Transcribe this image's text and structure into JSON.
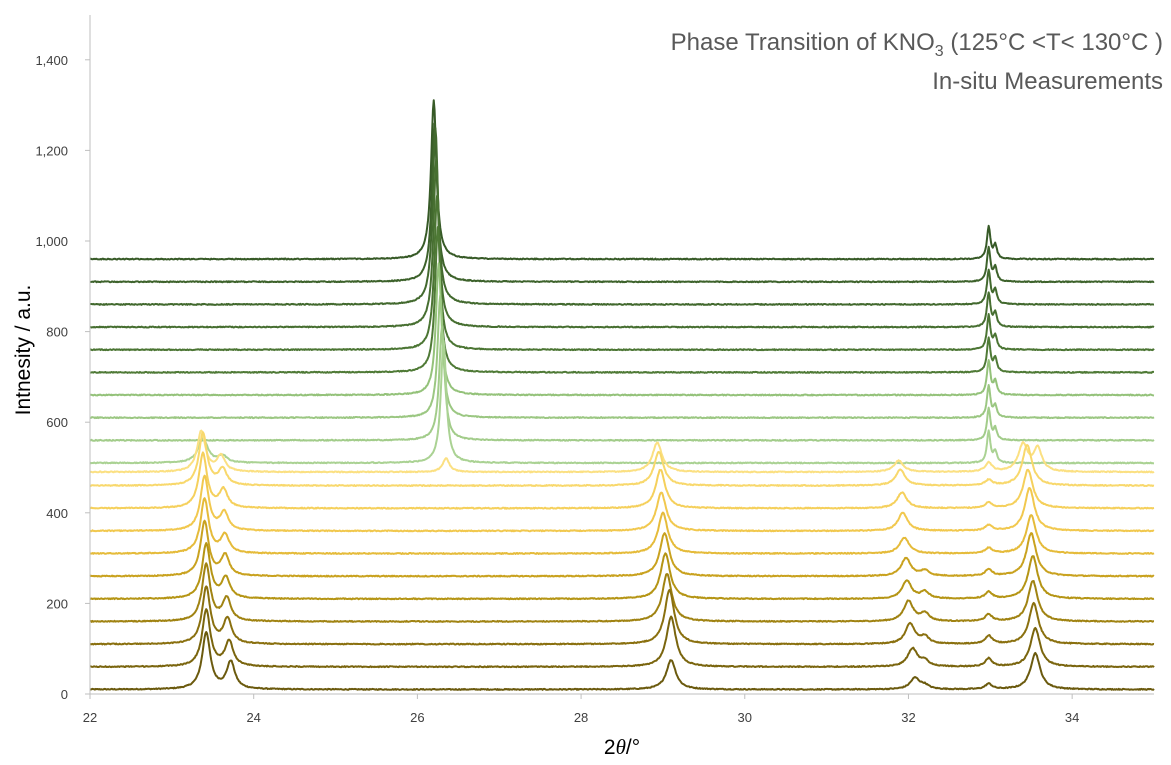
{
  "chart_data": {
    "type": "line",
    "title_line1_main": "Phase Transition of KNO",
    "title_line1_sub": "3",
    "title_line1_tail": " (125°C <T< 130°C )",
    "title_line2": "In-situ Measurements",
    "xlabel_pre": "2",
    "xlabel_theta": "θ",
    "xlabel_post": "/°",
    "ylabel": "Intnesity / a.u.",
    "xlim": [
      22,
      35
    ],
    "ylim": [
      0,
      1450
    ],
    "x_ticks": [
      22,
      24,
      26,
      28,
      30,
      32,
      34
    ],
    "y_ticks": [
      {
        "value": 0,
        "label": "0"
      },
      {
        "value": 200,
        "label": "200"
      },
      {
        "value": 400,
        "label": "400"
      },
      {
        "value": 600,
        "label": "600"
      },
      {
        "value": 800,
        "label": "800"
      },
      {
        "value": 1000,
        "label": "1,000"
      },
      {
        "value": 1200,
        "label": "1,200"
      },
      {
        "value": 1400,
        "label": "1,400"
      }
    ],
    "grid": false,
    "legend": "none",
    "series": [
      {
        "color": "#6b5a0e",
        "baseline": 10,
        "peaks": [
          [
            23.42,
            125,
            0.06
          ],
          [
            23.72,
            60,
            0.06
          ],
          [
            29.1,
            65,
            0.07
          ],
          [
            32.08,
            25,
            0.07
          ],
          [
            32.2,
            8,
            0.06
          ],
          [
            32.98,
            12,
            0.05
          ],
          [
            33.55,
            80,
            0.07
          ]
        ]
      },
      {
        "color": "#7a650e",
        "baseline": 60,
        "peaks": [
          [
            23.42,
            125,
            0.06
          ],
          [
            23.7,
            55,
            0.06
          ],
          [
            29.1,
            110,
            0.07
          ],
          [
            32.05,
            40,
            0.07
          ],
          [
            32.2,
            12,
            0.06
          ],
          [
            32.98,
            18,
            0.05
          ],
          [
            33.55,
            85,
            0.07
          ]
        ]
      },
      {
        "color": "#8a700f",
        "baseline": 110,
        "peaks": [
          [
            23.42,
            125,
            0.06
          ],
          [
            23.68,
            55,
            0.06
          ],
          [
            29.08,
            120,
            0.07
          ],
          [
            32.02,
            45,
            0.07
          ],
          [
            32.2,
            15,
            0.06
          ],
          [
            32.98,
            18,
            0.05
          ],
          [
            33.53,
            90,
            0.07
          ]
        ]
      },
      {
        "color": "#a08312",
        "baseline": 160,
        "peaks": [
          [
            23.42,
            125,
            0.06
          ],
          [
            23.67,
            50,
            0.06
          ],
          [
            29.05,
            105,
            0.07
          ],
          [
            32.0,
            45,
            0.07
          ],
          [
            32.2,
            18,
            0.06
          ],
          [
            32.98,
            15,
            0.05
          ],
          [
            33.52,
            90,
            0.07
          ]
        ]
      },
      {
        "color": "#b59515",
        "baseline": 210,
        "peaks": [
          [
            23.42,
            120,
            0.06
          ],
          [
            23.66,
            45,
            0.06
          ],
          [
            29.03,
            100,
            0.07
          ],
          [
            31.98,
            40,
            0.07
          ],
          [
            32.2,
            15,
            0.06
          ],
          [
            32.98,
            15,
            0.05
          ],
          [
            33.52,
            95,
            0.07
          ]
        ]
      },
      {
        "color": "#c9a21f",
        "baseline": 260,
        "peaks": [
          [
            23.4,
            120,
            0.06
          ],
          [
            23.65,
            45,
            0.06
          ],
          [
            29.02,
            95,
            0.07
          ],
          [
            31.97,
            40,
            0.07
          ],
          [
            32.2,
            12,
            0.06
          ],
          [
            32.98,
            15,
            0.05
          ],
          [
            33.5,
            95,
            0.07
          ]
        ]
      },
      {
        "color": "#e5bb3a",
        "baseline": 310,
        "peaks": [
          [
            23.4,
            120,
            0.06
          ],
          [
            23.65,
            40,
            0.06
          ],
          [
            29.0,
            90,
            0.07
          ],
          [
            31.95,
            35,
            0.07
          ],
          [
            32.98,
            12,
            0.05
          ],
          [
            33.5,
            85,
            0.07
          ]
        ]
      },
      {
        "color": "#f1c84e",
        "baseline": 360,
        "peaks": [
          [
            23.4,
            120,
            0.06
          ],
          [
            23.64,
            40,
            0.06
          ],
          [
            28.98,
            85,
            0.07
          ],
          [
            31.93,
            40,
            0.07
          ],
          [
            32.98,
            12,
            0.05
          ],
          [
            33.48,
            95,
            0.07
          ]
        ]
      },
      {
        "color": "#f5d05c",
        "baseline": 410,
        "peaks": [
          [
            23.38,
            120,
            0.06
          ],
          [
            23.63,
            40,
            0.06
          ],
          [
            28.97,
            85,
            0.07
          ],
          [
            31.92,
            35,
            0.07
          ],
          [
            32.98,
            12,
            0.05
          ],
          [
            33.46,
            85,
            0.07
          ]
        ]
      },
      {
        "color": "#f8d86c",
        "baseline": 460,
        "peaks": [
          [
            23.38,
            115,
            0.06
          ],
          [
            23.62,
            35,
            0.06
          ],
          [
            28.95,
            75,
            0.07
          ],
          [
            31.9,
            35,
            0.07
          ],
          [
            32.98,
            12,
            0.05
          ],
          [
            33.45,
            90,
            0.07
          ]
        ]
      },
      {
        "color": "#fbe082",
        "baseline": 490,
        "peaks": [
          [
            23.36,
            90,
            0.06
          ],
          [
            23.6,
            35,
            0.06
          ],
          [
            26.35,
            30,
            0.05
          ],
          [
            28.93,
            65,
            0.07
          ],
          [
            31.88,
            25,
            0.07
          ],
          [
            32.98,
            20,
            0.05
          ],
          [
            33.4,
            60,
            0.07
          ],
          [
            33.58,
            50,
            0.06
          ]
        ]
      },
      {
        "color": "#aad293",
        "baseline": 510,
        "peaks": [
          [
            23.38,
            55,
            0.07
          ],
          [
            23.62,
            15,
            0.06
          ],
          [
            26.32,
            270,
            0.04
          ],
          [
            32.98,
            70,
            0.025
          ],
          [
            33.06,
            25,
            0.025
          ]
        ]
      },
      {
        "color": "#a2cc8a",
        "baseline": 560,
        "peaks": [
          [
            26.3,
            250,
            0.04
          ],
          [
            32.98,
            70,
            0.025
          ],
          [
            33.06,
            25,
            0.025
          ]
        ]
      },
      {
        "color": "#9bc782",
        "baseline": 610,
        "peaks": [
          [
            26.28,
            270,
            0.04
          ],
          [
            32.98,
            70,
            0.025
          ],
          [
            33.06,
            25,
            0.025
          ]
        ]
      },
      {
        "color": "#94c27a",
        "baseline": 660,
        "peaks": [
          [
            26.26,
            290,
            0.04
          ],
          [
            32.98,
            75,
            0.025
          ],
          [
            33.06,
            30,
            0.025
          ]
        ]
      },
      {
        "color": "#4f7a36",
        "baseline": 710,
        "peaks": [
          [
            26.25,
            320,
            0.04
          ],
          [
            32.98,
            75,
            0.025
          ],
          [
            33.06,
            30,
            0.025
          ]
        ]
      },
      {
        "color": "#4b7533",
        "baseline": 760,
        "peaks": [
          [
            26.24,
            340,
            0.04
          ],
          [
            32.98,
            75,
            0.025
          ],
          [
            33.06,
            30,
            0.025
          ]
        ]
      },
      {
        "color": "#476f31",
        "baseline": 810,
        "peaks": [
          [
            26.23,
            370,
            0.04
          ],
          [
            32.98,
            75,
            0.025
          ],
          [
            33.06,
            30,
            0.025
          ]
        ]
      },
      {
        "color": "#42692e",
        "baseline": 860,
        "peaks": [
          [
            26.22,
            390,
            0.04
          ],
          [
            32.98,
            75,
            0.025
          ],
          [
            33.06,
            30,
            0.025
          ]
        ]
      },
      {
        "color": "#3d622b",
        "baseline": 910,
        "peaks": [
          [
            26.21,
            350,
            0.04
          ],
          [
            32.98,
            75,
            0.025
          ],
          [
            33.06,
            30,
            0.025
          ]
        ]
      },
      {
        "color": "#375a27",
        "baseline": 960,
        "peaks": [
          [
            26.2,
            350,
            0.04
          ],
          [
            32.98,
            70,
            0.025
          ],
          [
            33.06,
            30,
            0.025
          ]
        ]
      }
    ]
  }
}
